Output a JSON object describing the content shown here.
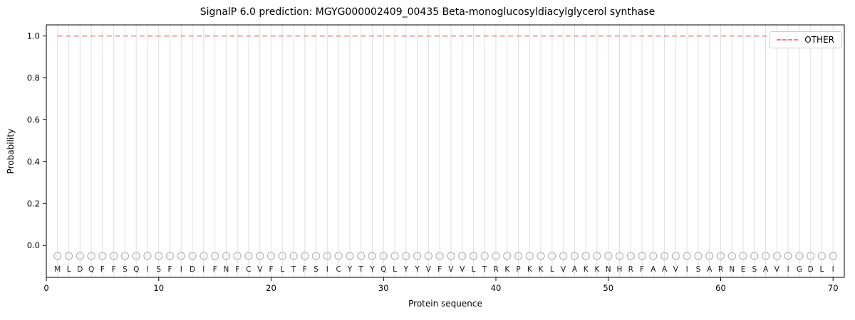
{
  "title": "SignalP 6.0 prediction: MGYG000002409_00435 Beta-monoglucosyldiacylglycerol synthase",
  "chart_data": {
    "type": "line",
    "title": "SignalP 6.0 prediction: MGYG000002409_00435 Beta-monoglucosyldiacylglycerol synthase",
    "xlabel": "Protein sequence",
    "ylabel": "Probability",
    "xlim": [
      0,
      71
    ],
    "ylim": [
      -0.152,
      1.053
    ],
    "xtick_values": [
      0,
      10,
      20,
      30,
      40,
      50,
      60,
      70
    ],
    "xtick_labels": [
      "0",
      "10",
      "20",
      "30",
      "40",
      "50",
      "60",
      "70"
    ],
    "ytick_values": [
      0.0,
      0.2,
      0.4,
      0.6,
      0.8,
      1.0
    ],
    "ytick_labels": [
      "0.0",
      "0.2",
      "0.4",
      "0.6",
      "0.8",
      "1.0"
    ],
    "grid": "light vertical gridline at every residue position 1-70",
    "legend_position": "upper right",
    "sequence": "MLDQFFSQISFIDIFNFCVFLTFSICYTYQLYYVFVVLTRKPKKLVAKKNHRFAAVISARNESAVIGDLI",
    "series": [
      {
        "name": "OTHER",
        "style": "dashed",
        "color": "#f08080",
        "x_start": 1,
        "values": [
          1.0,
          1.0,
          1.0,
          1.0,
          1.0,
          1.0,
          1.0,
          1.0,
          1.0,
          1.0,
          1.0,
          1.0,
          1.0,
          1.0,
          1.0,
          1.0,
          1.0,
          1.0,
          1.0,
          1.0,
          1.0,
          1.0,
          1.0,
          1.0,
          1.0,
          1.0,
          1.0,
          1.0,
          1.0,
          1.0,
          1.0,
          1.0,
          1.0,
          1.0,
          1.0,
          1.0,
          1.0,
          1.0,
          1.0,
          1.0,
          1.0,
          1.0,
          1.0,
          1.0,
          1.0,
          1.0,
          1.0,
          1.0,
          1.0,
          1.0,
          1.0,
          1.0,
          1.0,
          1.0,
          1.0,
          1.0,
          1.0,
          1.0,
          1.0,
          1.0,
          1.0,
          1.0,
          1.0,
          1.0,
          1.0,
          1.0,
          1.0,
          1.0,
          1.0,
          1.0
        ]
      }
    ],
    "residue_marker": {
      "shape": "open-circle",
      "y": -0.05
    },
    "residue_letter_y": -0.112
  },
  "colors": {
    "background": "#ffffff",
    "grid": "#e0e0e0",
    "axis": "#000000",
    "other_line": "#f08080",
    "marker": "#b5b5b5",
    "text": "#000000",
    "letter": "#1a1a1a"
  }
}
